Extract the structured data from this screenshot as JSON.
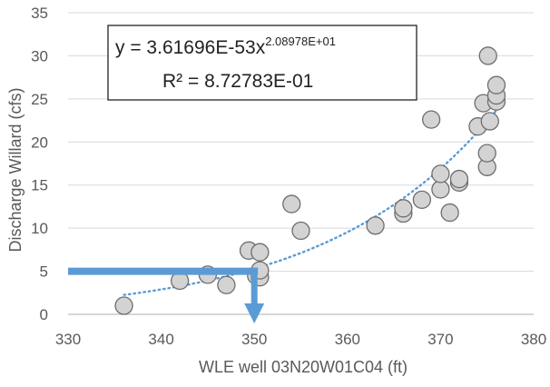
{
  "chart_data": {
    "type": "scatter",
    "title": "",
    "xlabel": "WLE well 03N20W01C04 (ft)",
    "ylabel": "Discharge Willard (cfs)",
    "xlim": [
      330,
      380
    ],
    "ylim": [
      0,
      35
    ],
    "x_ticks": [
      "330",
      "340",
      "350",
      "360",
      "370",
      "380"
    ],
    "y_ticks": [
      "0",
      "5",
      "10",
      "15",
      "20",
      "25",
      "30",
      "35"
    ],
    "grid": "horizontal",
    "points": [
      {
        "x": 336,
        "y": 1.0
      },
      {
        "x": 342,
        "y": 3.9
      },
      {
        "x": 345,
        "y": 4.6
      },
      {
        "x": 347,
        "y": 3.4
      },
      {
        "x": 349.4,
        "y": 7.4
      },
      {
        "x": 350.2,
        "y": 4.5
      },
      {
        "x": 350.6,
        "y": 4.3
      },
      {
        "x": 350.6,
        "y": 5.1
      },
      {
        "x": 350.6,
        "y": 7.2
      },
      {
        "x": 354,
        "y": 12.8
      },
      {
        "x": 355,
        "y": 9.7
      },
      {
        "x": 363,
        "y": 10.3
      },
      {
        "x": 366,
        "y": 11.7
      },
      {
        "x": 366,
        "y": 12.3
      },
      {
        "x": 368,
        "y": 13.3
      },
      {
        "x": 369,
        "y": 22.6
      },
      {
        "x": 370,
        "y": 14.5
      },
      {
        "x": 370,
        "y": 16.3
      },
      {
        "x": 371,
        "y": 11.8
      },
      {
        "x": 372,
        "y": 15.3
      },
      {
        "x": 372,
        "y": 15.7
      },
      {
        "x": 374,
        "y": 21.8
      },
      {
        "x": 374.6,
        "y": 24.5
      },
      {
        "x": 375,
        "y": 17.1
      },
      {
        "x": 375,
        "y": 18.7
      },
      {
        "x": 375.3,
        "y": 22.4
      },
      {
        "x": 375.1,
        "y": 30.0
      },
      {
        "x": 376,
        "y": 24.7
      },
      {
        "x": 376,
        "y": 25.4
      },
      {
        "x": 376,
        "y": 26.6
      }
    ],
    "trendline": {
      "type": "power",
      "coefficient": 3.61696e-53,
      "exponent": 20.8978,
      "x_range": [
        336,
        376
      ],
      "style": "dotted",
      "color": "#5B9BD5"
    },
    "equation_box": {
      "line1_prefix": "y = 3.61696E-53x",
      "line1_exponent": "2.08978E+01",
      "line2": "R² = 8.72783E-01"
    },
    "annotation_arrow": {
      "y_level": 5,
      "x_start": 330,
      "x_turn": 350,
      "y_end": 0,
      "color": "#5B9BD5"
    },
    "colors": {
      "marker_fill": "#D3D3D3",
      "marker_stroke": "#6E6E6E",
      "axis": "#BFBFBF",
      "gridline": "#D9D9D9",
      "text": "#595959"
    }
  }
}
